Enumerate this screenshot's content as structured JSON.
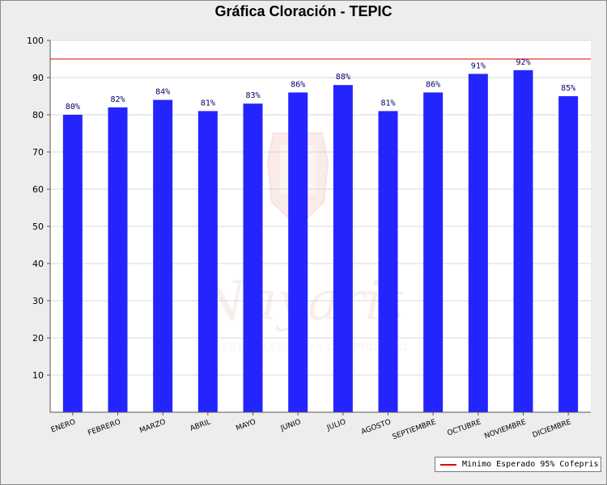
{
  "chart_data": {
    "type": "bar",
    "title": "Gráfica Cloración - TEPIC",
    "categories": [
      "ENERO",
      "FEBRERO",
      "MARZO",
      "ABRIL",
      "MAYO",
      "JUNIO",
      "JULIO",
      "AGOSTO",
      "SEPTIEMBRE",
      "OCTUBRE",
      "NOVIEMBRE",
      "DICIEMBRE"
    ],
    "values": [
      80,
      82,
      84,
      81,
      83,
      86,
      88,
      81,
      86,
      91,
      92,
      85
    ],
    "data_labels": [
      "80%",
      "82%",
      "84%",
      "81%",
      "83%",
      "86%",
      "88%",
      "81%",
      "86%",
      "91%",
      "92%",
      "85%"
    ],
    "ylim": [
      0,
      100
    ],
    "yticks": [
      "10",
      "20",
      "30",
      "40",
      "50",
      "60",
      "70",
      "80",
      "90",
      "100"
    ],
    "reference_line": {
      "value": 95,
      "label": "Minimo Esperado 95% Cofepris",
      "color": "#e00000"
    },
    "bar_color": "#2424ff",
    "grid": true,
    "legend_position": "bottom-right",
    "watermark": {
      "text": "Nayarit",
      "subtitle": "NUESTRA LEALTAD Y COMPROMISO"
    }
  }
}
